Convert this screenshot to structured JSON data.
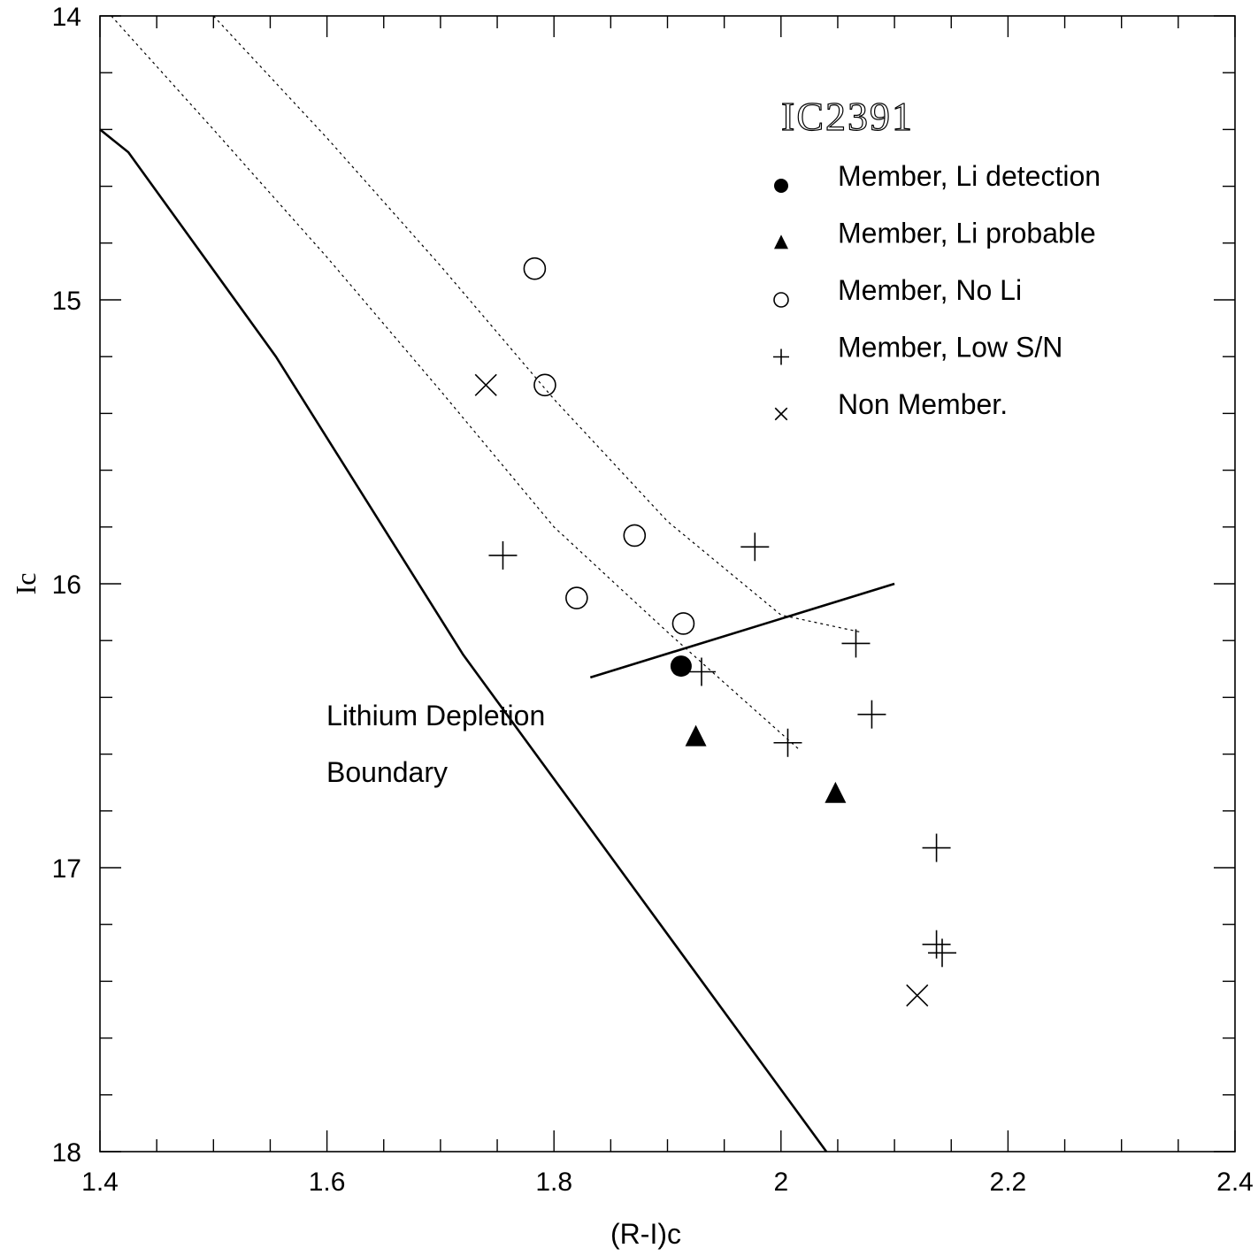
{
  "chart_data": {
    "type": "scatter",
    "title": "IC2391",
    "xlabel": "(R-I)c",
    "ylabel": "Ic",
    "xlim": [
      1.4,
      2.4
    ],
    "ylim": [
      18,
      14
    ],
    "y_inverted": true,
    "x_ticks": [
      "1.4",
      "1.6",
      "1.8",
      "2",
      "2.2",
      "2.4"
    ],
    "y_ticks": [
      "14",
      "15",
      "16",
      "17",
      "18"
    ],
    "grid": false,
    "legend_position": "top-right",
    "series": [
      {
        "name": "Member, Li detection",
        "marker": "filled-circle",
        "points": [
          [
            1.912,
            16.29
          ]
        ]
      },
      {
        "name": "Member, Li probable",
        "marker": "filled-triangle",
        "points": [
          [
            1.925,
            16.54
          ],
          [
            2.048,
            16.74
          ]
        ]
      },
      {
        "name": "Member, No Li",
        "marker": "open-circle",
        "points": [
          [
            1.783,
            14.89
          ],
          [
            1.792,
            15.3
          ],
          [
            1.871,
            15.83
          ],
          [
            1.82,
            16.05
          ],
          [
            1.914,
            16.14
          ]
        ]
      },
      {
        "name": "Member, Low S/N",
        "marker": "plus",
        "points": [
          [
            1.755,
            15.9
          ],
          [
            1.977,
            15.87
          ],
          [
            2.066,
            16.21
          ],
          [
            1.93,
            16.31
          ],
          [
            2.08,
            16.46
          ],
          [
            2.006,
            16.56
          ],
          [
            2.137,
            16.93
          ],
          [
            2.137,
            17.27
          ],
          [
            2.142,
            17.3
          ]
        ]
      },
      {
        "name": "Non Member.",
        "marker": "cross",
        "points": [
          [
            1.74,
            15.3
          ],
          [
            2.12,
            17.45
          ]
        ]
      }
    ],
    "lines": [
      {
        "style": "solid",
        "points": [
          [
            1.4,
            14.4
          ],
          [
            1.425,
            14.48
          ],
          [
            1.555,
            15.2
          ],
          [
            1.72,
            16.25
          ],
          [
            2.04,
            18.0
          ]
        ]
      },
      {
        "style": "dotted",
        "points": [
          [
            1.41,
            14.0
          ],
          [
            1.5,
            14.4
          ],
          [
            1.6,
            14.85
          ],
          [
            1.7,
            15.32
          ],
          [
            1.8,
            15.8
          ],
          [
            1.9,
            16.17
          ],
          [
            2.015,
            16.58
          ]
        ]
      },
      {
        "style": "dotted",
        "points": [
          [
            1.5,
            14.0
          ],
          [
            1.6,
            14.43
          ],
          [
            1.7,
            14.88
          ],
          [
            1.8,
            15.35
          ],
          [
            1.9,
            15.78
          ],
          [
            2.0,
            16.11
          ],
          [
            2.07,
            16.17
          ]
        ]
      },
      {
        "style": "solid",
        "points": [
          [
            1.832,
            16.33
          ],
          [
            2.1,
            16.0
          ]
        ]
      }
    ],
    "annotations": [
      "Lithium Depletion",
      "Boundary"
    ]
  }
}
